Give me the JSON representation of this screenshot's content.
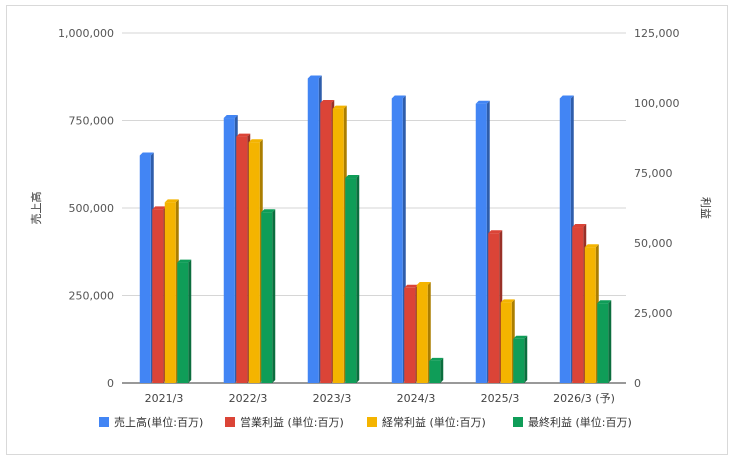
{
  "chart_data": {
    "type": "bar",
    "title": "",
    "categories": [
      "2021/3",
      "2022/3",
      "2023/3",
      "2024/3",
      "2025/3",
      "2026/3 (予)"
    ],
    "series": [
      {
        "name": "売上高(単位:百万)",
        "axis": "left",
        "color": "#4285F4",
        "values": [
          650000,
          757000,
          870000,
          813000,
          798000,
          813000
        ]
      },
      {
        "name": "営業利益 (単位:百万)",
        "axis": "right",
        "color": "#DB4437",
        "values": [
          62000,
          88000,
          100000,
          34000,
          53500,
          55700
        ]
      },
      {
        "name": "経常利益 (単位:百万)",
        "axis": "right",
        "color": "#F4B400",
        "values": [
          64500,
          86000,
          98000,
          35000,
          28800,
          48500
        ]
      },
      {
        "name": "最終利益 (単位:百万)",
        "axis": "right",
        "color": "#0F9D58",
        "values": [
          43000,
          61000,
          73200,
          7900,
          15800,
          28500
        ]
      }
    ],
    "y_left": {
      "label": "売上高",
      "range": [
        0,
        1000000
      ],
      "ticks": [
        "0",
        "250,000",
        "500,000",
        "750,000",
        "1,000,000"
      ]
    },
    "y_right": {
      "label": "利益",
      "range": [
        0,
        125000
      ],
      "ticks": [
        "0",
        "25,000",
        "50,000",
        "75,000",
        "100,000",
        "125,000"
      ]
    },
    "grid": true,
    "legend_position": "bottom"
  }
}
